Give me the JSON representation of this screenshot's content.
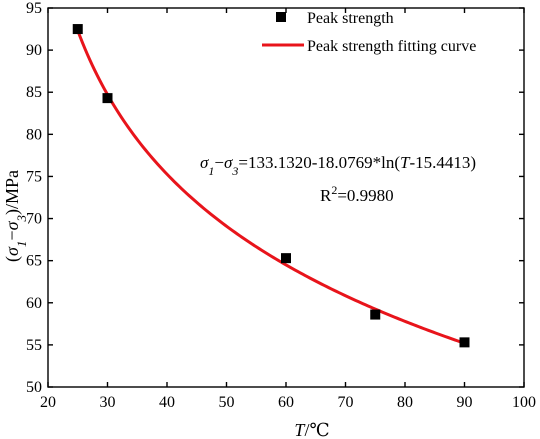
{
  "chart_data": {
    "type": "scatter",
    "x_axis": {
      "label_var": "T",
      "label_unit": "/℃",
      "range": [
        20,
        100
      ],
      "ticks": [
        20,
        30,
        40,
        50,
        60,
        70,
        80,
        90,
        100
      ],
      "tick_labels": [
        "20",
        "30",
        "40",
        "50",
        "60",
        "70",
        "80",
        "90",
        "100"
      ]
    },
    "y_axis": {
      "label_open": "(",
      "label_s1": "σ",
      "label_sub1": "1",
      "label_dash": "−",
      "label_s3": "σ",
      "label_sub3": "3",
      "label_close": ")/MPa",
      "range": [
        50,
        95
      ],
      "ticks": [
        50,
        55,
        60,
        65,
        70,
        75,
        80,
        85,
        90,
        95
      ],
      "tick_labels": [
        "50",
        "55",
        "60",
        "65",
        "70",
        "75",
        "80",
        "85",
        "90",
        "95"
      ]
    },
    "grid": false,
    "legend_position": "top-right",
    "series": [
      {
        "name": "Peak strength",
        "kind": "scatter",
        "marker": "square",
        "color": "#000000",
        "x": [
          25,
          30,
          60,
          75,
          90
        ],
        "y": [
          92.5,
          84.3,
          65.3,
          58.6,
          55.3
        ]
      },
      {
        "name": "Peak strength fitting curve",
        "kind": "line",
        "color": "#e8141b",
        "a": 133.132,
        "b": 18.0769,
        "c": 15.4413,
        "x_start": 25,
        "x_end": 90
      }
    ],
    "equation": {
      "s1": "σ",
      "sub1": "1",
      "dash": "−",
      "s3": "σ",
      "sub3": "3",
      "mid": "=133.1320-18.0769*ln(",
      "var": "T",
      "tail": "-15.4413)"
    },
    "r_squared": {
      "prefix": "R",
      "sup": "2",
      "value": "=0.9980"
    }
  }
}
